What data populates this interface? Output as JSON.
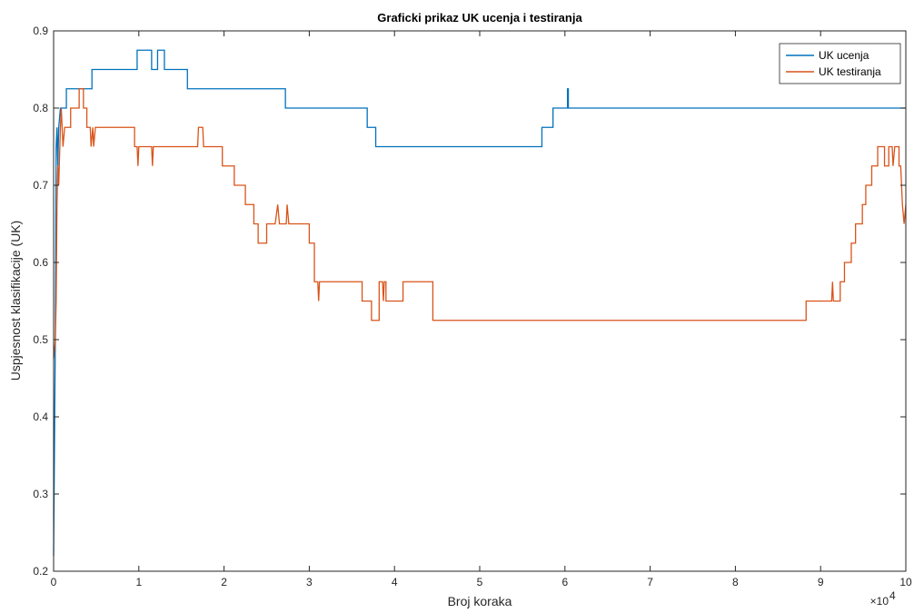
{
  "chart_data": {
    "type": "line",
    "title": "Graficki prikaz UK ucenja i testiranja",
    "xlabel": "Broj koraka",
    "ylabel": "Uspjesnost klasifikacije (UK)",
    "xlim": [
      0,
      100000
    ],
    "ylim": [
      0.2,
      0.9
    ],
    "x_ticks": [
      0,
      10000,
      20000,
      30000,
      40000,
      50000,
      60000,
      70000,
      80000,
      90000,
      100000
    ],
    "x_tick_labels": [
      "0",
      "1",
      "2",
      "3",
      "4",
      "5",
      "6",
      "7",
      "8",
      "9",
      "10"
    ],
    "x_exponent_label": "×10",
    "x_exponent_power": "4",
    "y_ticks": [
      0.2,
      0.3,
      0.4,
      0.5,
      0.6,
      0.7,
      0.8,
      0.9
    ],
    "y_tick_labels": [
      "0.2",
      "0.3",
      "0.4",
      "0.5",
      "0.6",
      "0.7",
      "0.8",
      "0.9"
    ],
    "grid": false,
    "legend_position": "top-right",
    "series": [
      {
        "name": "UK ucenja",
        "color": "#0072BD",
        "points": [
          [
            0,
            0.22
          ],
          [
            200,
            0.5
          ],
          [
            300,
            0.75
          ],
          [
            400,
            0.775
          ],
          [
            500,
            0.725
          ],
          [
            600,
            0.775
          ],
          [
            800,
            0.8
          ],
          [
            1500,
            0.8
          ],
          [
            1500,
            0.825
          ],
          [
            4500,
            0.825
          ],
          [
            4500,
            0.85
          ],
          [
            9800,
            0.85
          ],
          [
            9800,
            0.875
          ],
          [
            11500,
            0.875
          ],
          [
            11500,
            0.85
          ],
          [
            12200,
            0.85
          ],
          [
            12200,
            0.875
          ],
          [
            13000,
            0.875
          ],
          [
            13000,
            0.85
          ],
          [
            15700,
            0.85
          ],
          [
            15700,
            0.825
          ],
          [
            27200,
            0.825
          ],
          [
            27200,
            0.8
          ],
          [
            36800,
            0.8
          ],
          [
            36800,
            0.775
          ],
          [
            37800,
            0.775
          ],
          [
            37800,
            0.75
          ],
          [
            57300,
            0.75
          ],
          [
            57300,
            0.775
          ],
          [
            58600,
            0.775
          ],
          [
            58600,
            0.8
          ],
          [
            60300,
            0.8
          ],
          [
            60300,
            0.825
          ],
          [
            60400,
            0.825
          ],
          [
            60400,
            0.8
          ],
          [
            100000,
            0.8
          ]
        ]
      },
      {
        "name": "UK testiranja",
        "color": "#D95319",
        "points": [
          [
            0,
            0.475
          ],
          [
            200,
            0.5
          ],
          [
            300,
            0.55
          ],
          [
            400,
            0.675
          ],
          [
            500,
            0.725
          ],
          [
            600,
            0.7
          ],
          [
            800,
            0.775
          ],
          [
            900,
            0.8
          ],
          [
            1100,
            0.75
          ],
          [
            1300,
            0.775
          ],
          [
            2000,
            0.775
          ],
          [
            2000,
            0.8
          ],
          [
            3000,
            0.8
          ],
          [
            3000,
            0.825
          ],
          [
            3500,
            0.825
          ],
          [
            3500,
            0.8
          ],
          [
            3900,
            0.8
          ],
          [
            3900,
            0.775
          ],
          [
            4300,
            0.775
          ],
          [
            4400,
            0.75
          ],
          [
            4600,
            0.775
          ],
          [
            4700,
            0.75
          ],
          [
            4900,
            0.775
          ],
          [
            9500,
            0.775
          ],
          [
            9500,
            0.75
          ],
          [
            9800,
            0.75
          ],
          [
            9900,
            0.725
          ],
          [
            10000,
            0.75
          ],
          [
            11500,
            0.75
          ],
          [
            11600,
            0.725
          ],
          [
            11700,
            0.75
          ],
          [
            16900,
            0.75
          ],
          [
            17000,
            0.775
          ],
          [
            17500,
            0.775
          ],
          [
            17600,
            0.75
          ],
          [
            19800,
            0.75
          ],
          [
            19800,
            0.725
          ],
          [
            21200,
            0.725
          ],
          [
            21200,
            0.7
          ],
          [
            22500,
            0.7
          ],
          [
            22500,
            0.675
          ],
          [
            23500,
            0.675
          ],
          [
            23500,
            0.65
          ],
          [
            24000,
            0.65
          ],
          [
            24000,
            0.625
          ],
          [
            25000,
            0.625
          ],
          [
            25000,
            0.65
          ],
          [
            26000,
            0.65
          ],
          [
            26300,
            0.675
          ],
          [
            26500,
            0.65
          ],
          [
            27300,
            0.65
          ],
          [
            27400,
            0.675
          ],
          [
            27600,
            0.65
          ],
          [
            30000,
            0.65
          ],
          [
            30000,
            0.625
          ],
          [
            30600,
            0.625
          ],
          [
            30600,
            0.575
          ],
          [
            31000,
            0.575
          ],
          [
            31100,
            0.55
          ],
          [
            31200,
            0.575
          ],
          [
            36200,
            0.575
          ],
          [
            36200,
            0.55
          ],
          [
            37300,
            0.55
          ],
          [
            37300,
            0.525
          ],
          [
            38200,
            0.525
          ],
          [
            38200,
            0.575
          ],
          [
            38600,
            0.575
          ],
          [
            38700,
            0.55
          ],
          [
            38800,
            0.575
          ],
          [
            39000,
            0.575
          ],
          [
            39000,
            0.55
          ],
          [
            41000,
            0.55
          ],
          [
            41000,
            0.575
          ],
          [
            44500,
            0.575
          ],
          [
            44500,
            0.525
          ],
          [
            88300,
            0.525
          ],
          [
            88300,
            0.55
          ],
          [
            91300,
            0.55
          ],
          [
            91400,
            0.575
          ],
          [
            91500,
            0.55
          ],
          [
            92300,
            0.55
          ],
          [
            92300,
            0.575
          ],
          [
            92800,
            0.575
          ],
          [
            92800,
            0.6
          ],
          [
            93600,
            0.6
          ],
          [
            93600,
            0.625
          ],
          [
            94100,
            0.625
          ],
          [
            94100,
            0.65
          ],
          [
            94900,
            0.65
          ],
          [
            94900,
            0.675
          ],
          [
            95300,
            0.675
          ],
          [
            95300,
            0.7
          ],
          [
            96000,
            0.7
          ],
          [
            96000,
            0.725
          ],
          [
            96700,
            0.725
          ],
          [
            96700,
            0.75
          ],
          [
            97500,
            0.75
          ],
          [
            97500,
            0.725
          ],
          [
            98000,
            0.725
          ],
          [
            98000,
            0.75
          ],
          [
            98400,
            0.75
          ],
          [
            98500,
            0.725
          ],
          [
            98700,
            0.75
          ],
          [
            99200,
            0.75
          ],
          [
            99200,
            0.725
          ],
          [
            99400,
            0.725
          ],
          [
            99500,
            0.7
          ],
          [
            99600,
            0.675
          ],
          [
            99800,
            0.65
          ],
          [
            100000,
            0.675
          ]
        ]
      }
    ]
  }
}
